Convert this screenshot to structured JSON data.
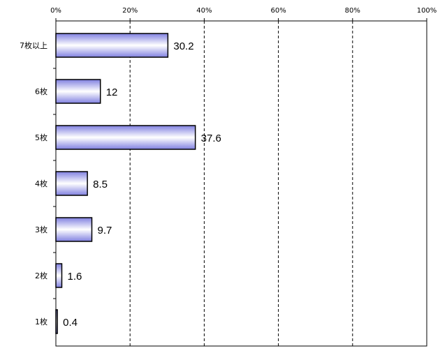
{
  "chart_data": {
    "type": "bar",
    "orientation": "horizontal",
    "categories": [
      "7枚以上",
      "6枚",
      "5枚",
      "4枚",
      "3枚",
      "2枚",
      "1枚"
    ],
    "values": [
      30.2,
      12,
      37.6,
      8.5,
      9.7,
      1.6,
      0.4
    ],
    "value_labels": [
      "30.2",
      "12",
      "37.6",
      "8.5",
      "9.7",
      "1.6",
      "0.4"
    ],
    "xlim": [
      0,
      100
    ],
    "x_ticks": [
      0,
      20,
      40,
      60,
      80,
      100
    ],
    "x_tick_labels": [
      "0%",
      "20%",
      "40%",
      "60%",
      "80%",
      "100%"
    ],
    "x_axis_position": "top",
    "grid": "vertical-dashed",
    "title": "",
    "xlabel": "",
    "ylabel": "",
    "colors": {
      "bar_fill_edge": "#8080e0",
      "bar_fill_center": "#ffffff",
      "bar_stroke": "#000000",
      "grid": "#000000"
    }
  }
}
